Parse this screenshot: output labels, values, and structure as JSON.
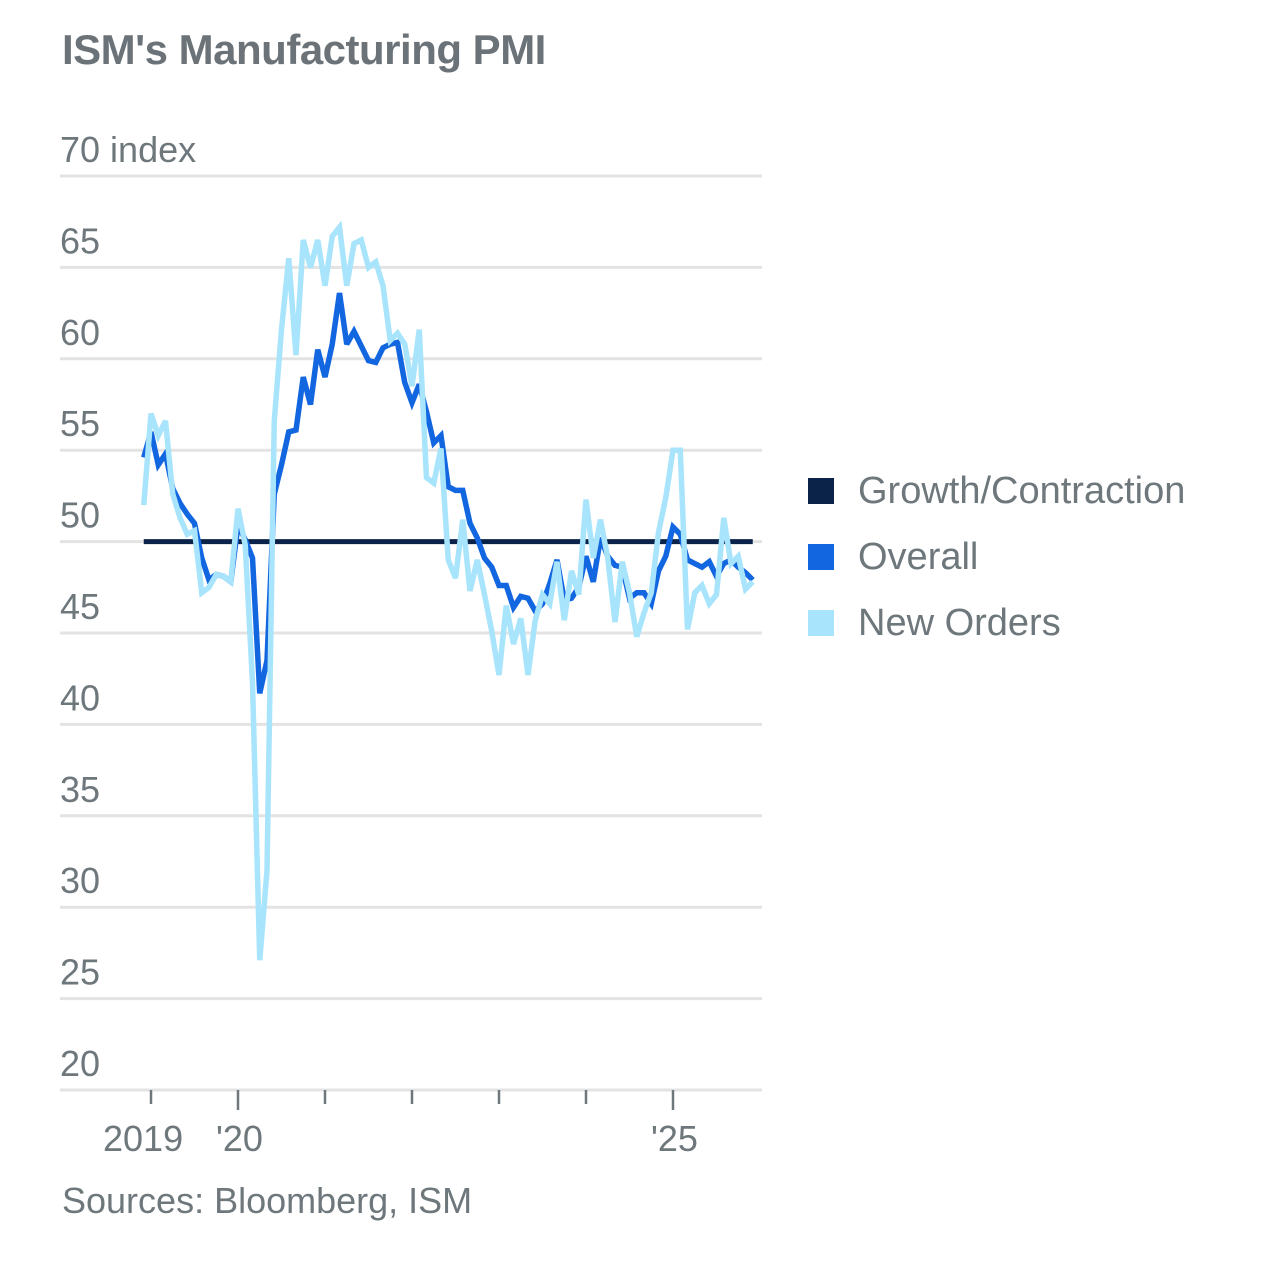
{
  "chart_data": {
    "type": "line",
    "title": "ISM's Manufacturing PMI",
    "ylabel": "index",
    "xlabel": "",
    "ylim": [
      20,
      70
    ],
    "yticks": [
      20,
      25,
      30,
      35,
      40,
      45,
      50,
      55,
      60,
      65,
      70
    ],
    "ytick_labels": [
      "20",
      "25",
      "30",
      "35",
      "40",
      "45",
      "50",
      "55",
      "60",
      "65",
      "70 index"
    ],
    "grid": true,
    "legend_position": "right",
    "x_start": "2018-12",
    "x_end": "2025-12",
    "xticks": [
      "2019-01",
      "2020-01",
      "2021-01",
      "2022-01",
      "2023-01",
      "2024-01",
      "2025-01"
    ],
    "xtick_labels": [
      "2019",
      "'20",
      "",
      "",
      "",
      "",
      "'25"
    ],
    "x": [
      "2018-12",
      "2019-01",
      "2019-02",
      "2019-03",
      "2019-04",
      "2019-05",
      "2019-06",
      "2019-07",
      "2019-08",
      "2019-09",
      "2019-10",
      "2019-11",
      "2019-12",
      "2020-01",
      "2020-02",
      "2020-03",
      "2020-04",
      "2020-05",
      "2020-06",
      "2020-07",
      "2020-08",
      "2020-09",
      "2020-10",
      "2020-11",
      "2020-12",
      "2021-01",
      "2021-02",
      "2021-03",
      "2021-04",
      "2021-05",
      "2021-06",
      "2021-07",
      "2021-08",
      "2021-09",
      "2021-10",
      "2021-11",
      "2021-12",
      "2022-01",
      "2022-02",
      "2022-03",
      "2022-04",
      "2022-05",
      "2022-06",
      "2022-07",
      "2022-08",
      "2022-09",
      "2022-10",
      "2022-11",
      "2022-12",
      "2023-01",
      "2023-02",
      "2023-03",
      "2023-04",
      "2023-05",
      "2023-06",
      "2023-07",
      "2023-08",
      "2023-09",
      "2023-10",
      "2023-11",
      "2023-12",
      "2024-01",
      "2024-02",
      "2024-03",
      "2024-04",
      "2024-05",
      "2024-06",
      "2024-07",
      "2024-08",
      "2024-09",
      "2024-10",
      "2024-11",
      "2024-12",
      "2025-01",
      "2025-02",
      "2025-03",
      "2025-04",
      "2025-05",
      "2025-06",
      "2025-07",
      "2025-08",
      "2025-09",
      "2025-10",
      "2025-11",
      "2025-12"
    ],
    "series": [
      {
        "name": "Growth/Contraction",
        "color": "#0b2348",
        "constant": 50
      },
      {
        "name": "Overall",
        "color": "#1266e0",
        "values": [
          54.6,
          56.0,
          54.2,
          54.8,
          52.9,
          52.1,
          51.5,
          51.0,
          49.1,
          47.9,
          48.2,
          48.1,
          47.8,
          50.9,
          50.1,
          49.1,
          41.7,
          43.5,
          52.6,
          54.2,
          56.0,
          56.1,
          59.0,
          57.5,
          60.5,
          59.0,
          60.8,
          63.6,
          60.8,
          61.5,
          60.7,
          59.9,
          59.8,
          60.6,
          60.8,
          60.9,
          58.7,
          57.6,
          58.6,
          57.1,
          55.4,
          55.8,
          53.0,
          52.8,
          52.8,
          51.0,
          50.2,
          49.1,
          48.6,
          47.6,
          47.6,
          46.4,
          47.0,
          46.9,
          46.2,
          46.6,
          47.7,
          49.0,
          46.8,
          46.9,
          47.5,
          49.2,
          47.8,
          50.2,
          49.2,
          48.7,
          48.6,
          46.9,
          47.2,
          47.2,
          46.6,
          48.4,
          49.2,
          50.8,
          50.4,
          49.0,
          48.8,
          48.6,
          48.9,
          48.1,
          48.8,
          49.0,
          48.6,
          48.3,
          47.9
        ]
      },
      {
        "name": "New Orders",
        "color": "#a8e4fb",
        "values": [
          52.0,
          57.0,
          55.8,
          56.6,
          52.6,
          51.3,
          50.4,
          50.6,
          47.2,
          47.5,
          48.2,
          48.1,
          47.8,
          51.8,
          49.8,
          42.3,
          27.1,
          32.0,
          56.6,
          61.6,
          65.5,
          60.2,
          66.5,
          65.0,
          66.5,
          64.0,
          66.7,
          67.2,
          64.0,
          66.3,
          66.5,
          65.0,
          65.3,
          64.0,
          61.0,
          61.4,
          60.8,
          58.5,
          61.6,
          53.5,
          53.2,
          55.1,
          49.0,
          48.0,
          51.2,
          47.3,
          49.0,
          47.1,
          45.1,
          42.7,
          46.5,
          44.4,
          45.8,
          42.7,
          45.7,
          47.1,
          46.6,
          48.9,
          45.7,
          48.4,
          47.1,
          52.3,
          49.1,
          51.2,
          49.1,
          45.6,
          48.9,
          47.2,
          44.8,
          46.1,
          47.2,
          50.5,
          52.4,
          55.0,
          55.0,
          45.2,
          47.2,
          47.6,
          46.6,
          47.1,
          51.3,
          48.8,
          49.2,
          47.4,
          47.8
        ]
      }
    ]
  },
  "source": "Sources: Bloomberg, ISM"
}
